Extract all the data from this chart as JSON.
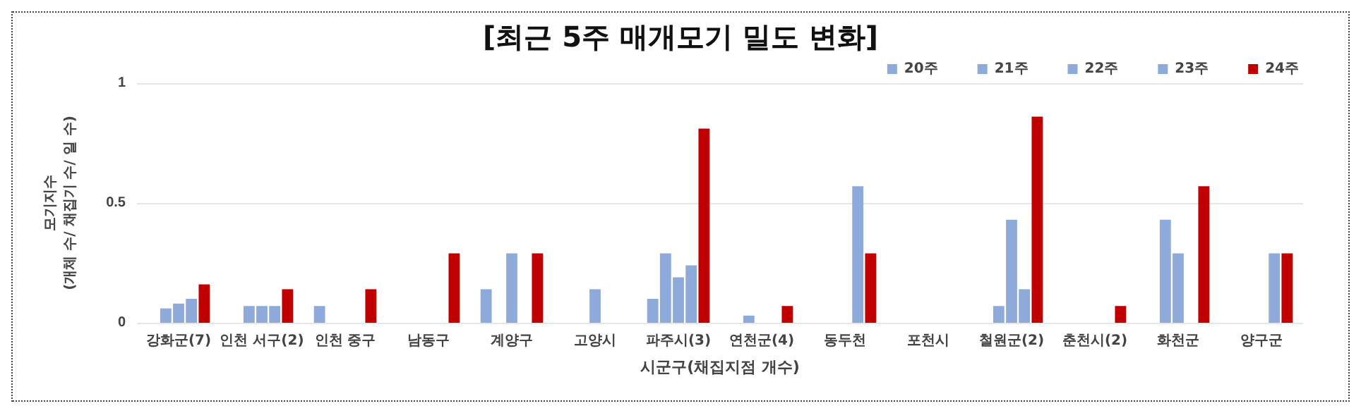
{
  "chart_data": {
    "type": "bar",
    "title": "[최근 5주 매개모기 밀도 변화]",
    "xlabel": "시군구(채집지점 개수)",
    "ylabel": "모기지수\n(개체 수/ 채집기 수/ 일 수)",
    "categories": [
      "강화군(7)",
      "인천 서구(2)",
      "인천 중구",
      "남동구",
      "계양구",
      "고양시",
      "파주시(3)",
      "연천군(4)",
      "동두천",
      "포천시",
      "철원군(2)",
      "춘천시(2)",
      "화천군",
      "양구군"
    ],
    "series": [
      {
        "name": "20주",
        "color": "#8eaadb",
        "values": [
          null,
          null,
          0.07,
          null,
          0.14,
          null,
          0.1,
          null,
          null,
          null,
          null,
          null,
          null,
          null
        ]
      },
      {
        "name": "21주",
        "color": "#8eaadb",
        "values": [
          0.06,
          0.07,
          null,
          null,
          null,
          null,
          0.29,
          0.03,
          null,
          null,
          0.07,
          null,
          0.43,
          null
        ]
      },
      {
        "name": "22주",
        "color": "#8eaadb",
        "values": [
          0.08,
          0.07,
          null,
          null,
          0.29,
          0.14,
          0.19,
          null,
          null,
          null,
          0.43,
          null,
          0.29,
          null
        ]
      },
      {
        "name": "23주",
        "color": "#8eaadb",
        "values": [
          0.1,
          0.07,
          null,
          null,
          null,
          null,
          0.24,
          null,
          0.57,
          null,
          0.14,
          null,
          null,
          0.29
        ]
      },
      {
        "name": "24주",
        "color": "#c00000",
        "values": [
          0.16,
          0.14,
          0.14,
          0.29,
          0.29,
          null,
          0.81,
          0.07,
          0.29,
          null,
          0.86,
          0.07,
          0.57,
          0.29
        ]
      }
    ],
    "ylim": [
      0,
      1
    ],
    "yticks": [
      0,
      0.5,
      1
    ],
    "grid": "y",
    "legend": "top right"
  }
}
